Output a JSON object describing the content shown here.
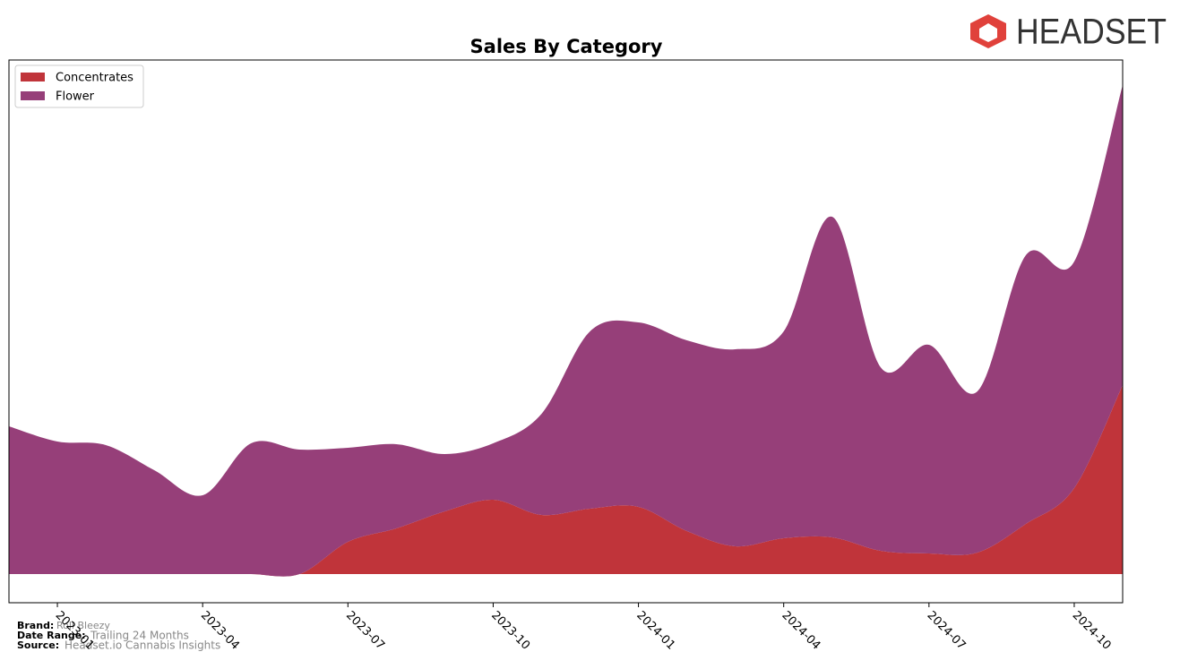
{
  "chart_data": {
    "type": "stacked-area",
    "title": "Sales By Category",
    "x": [
      "2022-12",
      "2023-01",
      "2023-02",
      "2023-03",
      "2023-04",
      "2023-05",
      "2023-06",
      "2023-07",
      "2023-08",
      "2023-09",
      "2023-10",
      "2023-11",
      "2023-12",
      "2024-01",
      "2024-02",
      "2024-03",
      "2024-04",
      "2024-05",
      "2024-06",
      "2024-07",
      "2024-08",
      "2024-09",
      "2024-10",
      "2024-11"
    ],
    "series": [
      {
        "name": "Concentrates",
        "color": "#c0343a",
        "values": [
          0,
          0,
          0,
          0,
          0,
          0,
          0,
          36,
          51,
          70,
          83,
          66,
          73,
          75,
          48,
          31,
          40,
          41,
          26,
          23,
          24,
          56,
          96,
          211
        ]
      },
      {
        "name": "Flower",
        "color": "#963f79",
        "values": [
          165,
          148,
          144,
          116,
          88,
          146,
          139,
          105,
          94,
          64,
          63,
          113,
          198,
          206,
          213,
          220,
          231,
          358,
          205,
          233,
          180,
          300,
          253,
          335
        ]
      }
    ],
    "ylim": [
      -32,
      574
    ],
    "xticks": [
      "2023-01",
      "2023-04",
      "2023-07",
      "2023-10",
      "2024-01",
      "2024-04",
      "2024-07",
      "2024-10"
    ],
    "legend": "upper-left",
    "footer": {
      "brand_label": "Brand:",
      "brand": "Roll Bleezy",
      "range_label": "Date Range:",
      "range": "Trailing 24 Months",
      "source_label": "Source:",
      "source": "Headset.io Cannabis Insights"
    },
    "logo": "HEADSET"
  }
}
